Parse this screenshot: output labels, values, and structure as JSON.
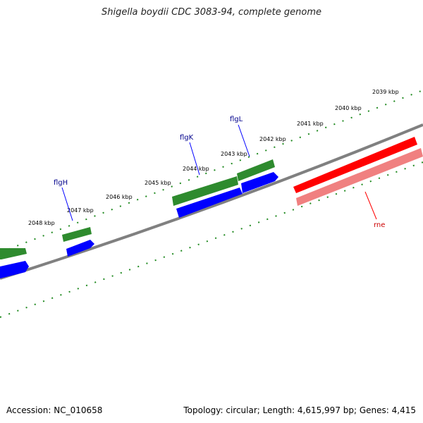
{
  "title": "Shigella boydii CDC 3083-94, complete genome",
  "footer": {
    "accession": "Accession: NC_010658",
    "summary": "Topology: circular; Length: 4,615,997 bp; Genes: 4,415"
  },
  "colors": {
    "backbone": "#808080",
    "forward_gene": "#2e8b2e",
    "forward_gene_arrow": "#0000ff",
    "reverse_gene": "#ff0000",
    "reverse_gene_light": "#f08080",
    "tick": "#228b22",
    "label_blue": "#00008b",
    "label_red": "#cc0000"
  },
  "kbp_labels": [
    "2039 kbp",
    "2040 kbp",
    "2041 kbp",
    "2042 kbp",
    "2043 kbp",
    "2044 kbp",
    "2045 kbp",
    "2046 kbp",
    "2047 kbp",
    "2048 kbp"
  ],
  "gene_labels": [
    {
      "name": "flgL",
      "color": "blue"
    },
    {
      "name": "flgK",
      "color": "blue"
    },
    {
      "name": "flgH",
      "color": "blue"
    },
    {
      "name": "rne",
      "color": "red"
    }
  ]
}
